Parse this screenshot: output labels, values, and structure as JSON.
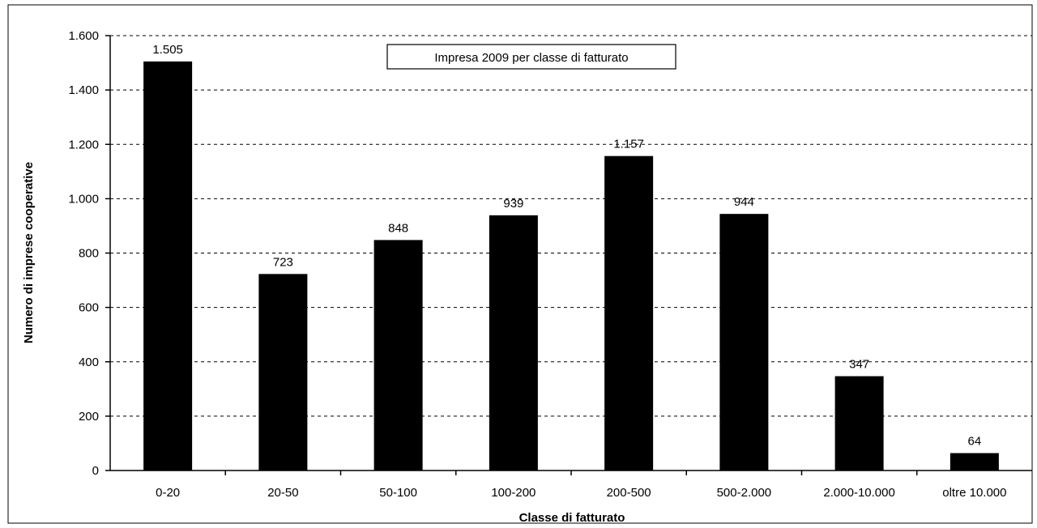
{
  "chart_data": {
    "type": "bar",
    "title": "Impresa 2009 per classe di fatturato",
    "xlabel": "Classe di fatturato",
    "ylabel": "Numero di imprese cooperative",
    "categories": [
      "0-20",
      "20-50",
      "50-100",
      "100-200",
      "200-500",
      "500-2.000",
      "2.000-10.000",
      "oltre 10.000"
    ],
    "values": [
      1505,
      723,
      848,
      939,
      1157,
      944,
      347,
      64
    ],
    "value_labels": [
      "1.505",
      "723",
      "848",
      "939",
      "1.157",
      "944",
      "347",
      "64"
    ],
    "ylim": [
      0,
      1600
    ],
    "yticks": [
      0,
      200,
      400,
      600,
      800,
      1000,
      1200,
      1400,
      1600
    ],
    "ytick_labels": [
      "0",
      "200",
      "400",
      "600",
      "800",
      "1.000",
      "1.200",
      "1.400",
      "1.600"
    ],
    "grid": true,
    "grid_style": "dashed",
    "bar_color": "#000000",
    "legend": false
  }
}
